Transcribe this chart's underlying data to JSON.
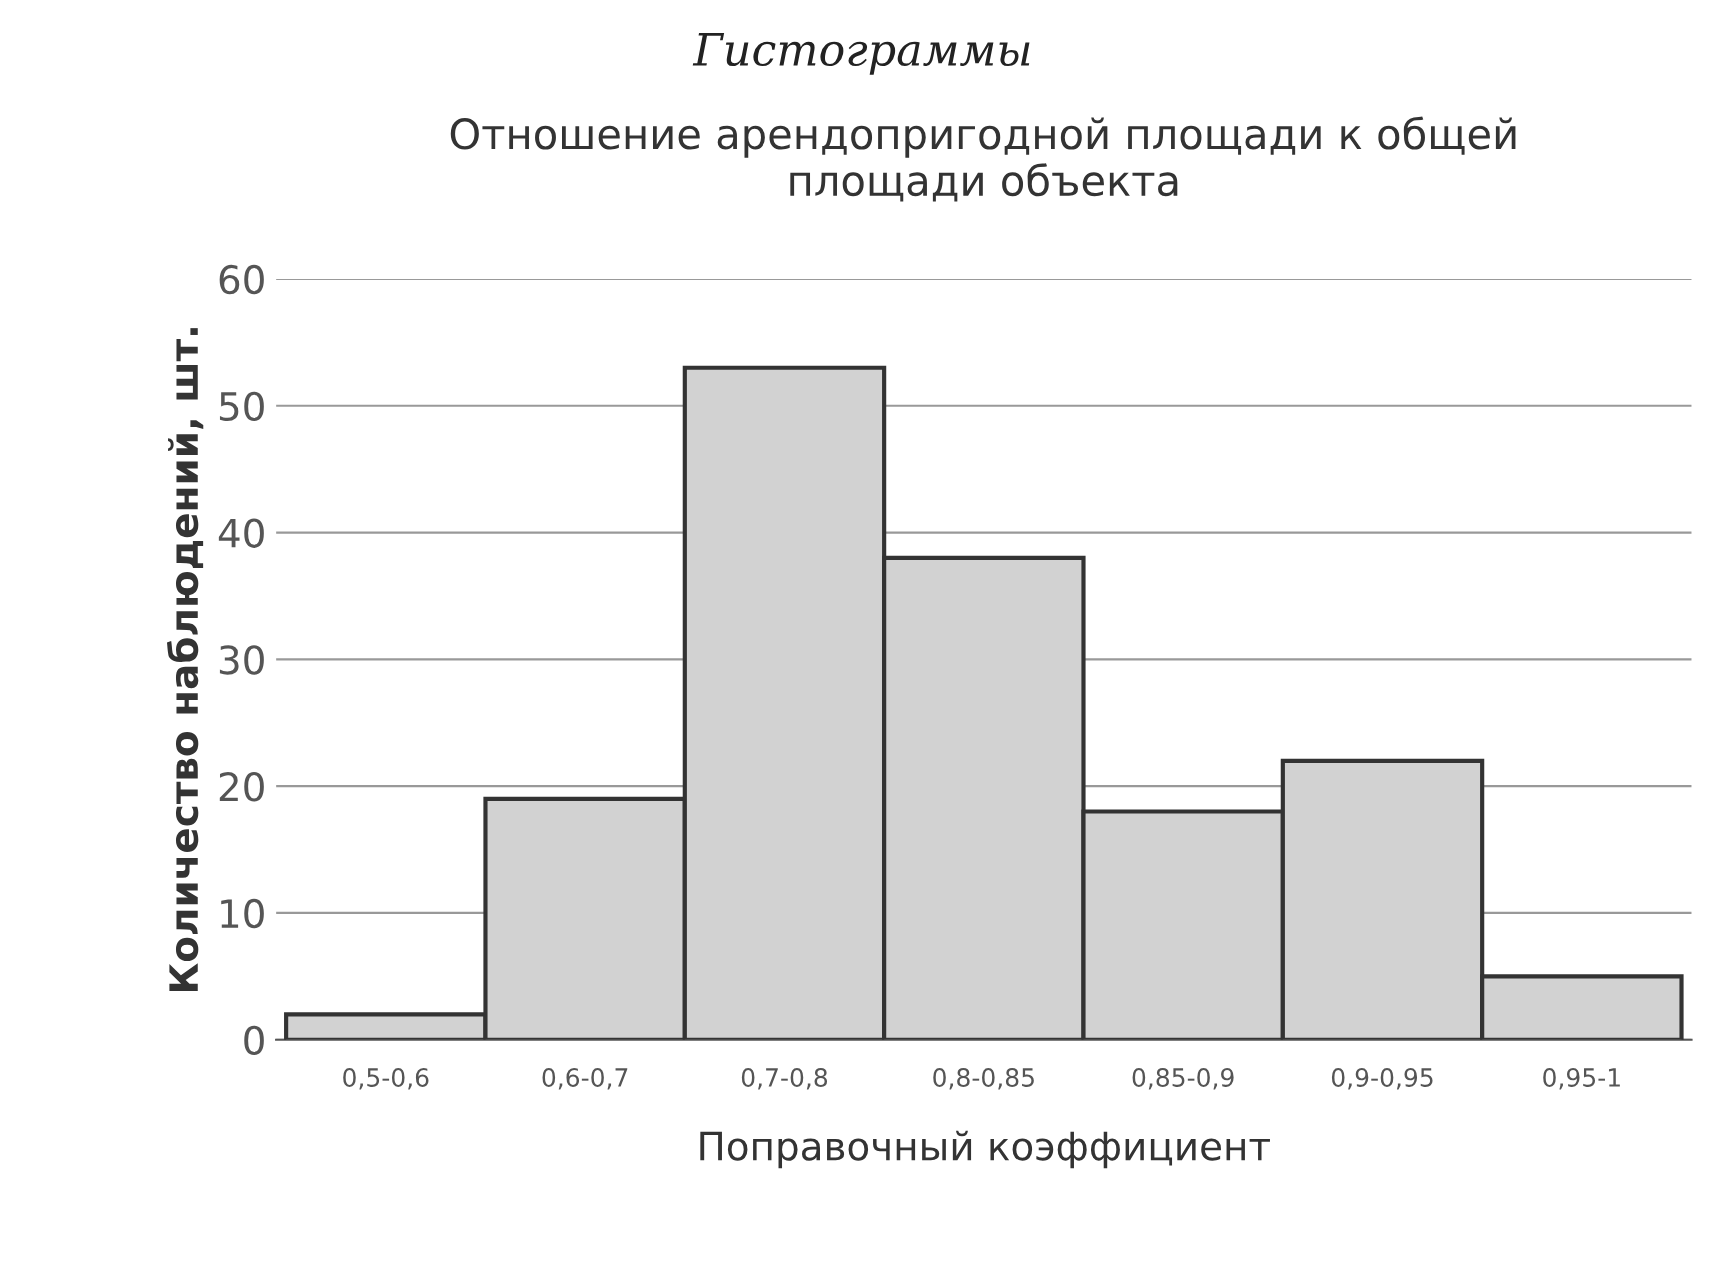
{
  "chart_data": {
    "type": "bar",
    "title": "Отношение арендопригодной площади к общей\nплощади объекта",
    "xlabel": "Поправочный коэффициент",
    "ylabel": "Количество наблюдений, шт.",
    "categories": [
      "0,5-0,6",
      "0,6-0,7",
      "0,7-0,8",
      "0,8-0,85",
      "0,85-0,9",
      "0,9-0,95",
      "0,95-1"
    ],
    "values": [
      2,
      19,
      53,
      38,
      18,
      22,
      5
    ],
    "color": "#d2d2d2",
    "ylim": [
      0,
      60
    ],
    "yticks": [
      0,
      10,
      20,
      30,
      40,
      50,
      60
    ],
    "grid": "y",
    "legend": false,
    "annotations": [
      "Гистограммы"
    ]
  }
}
